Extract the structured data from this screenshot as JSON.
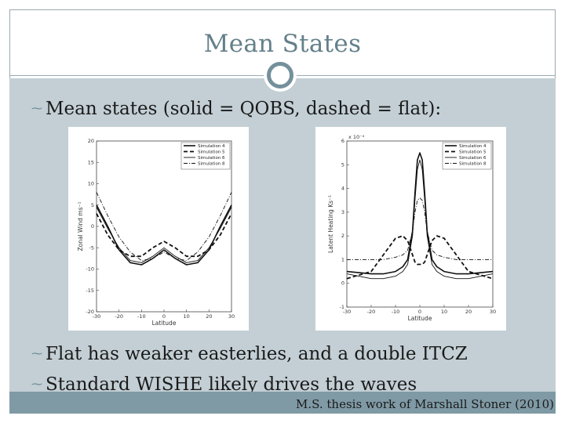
{
  "slide": {
    "title": "Mean States",
    "bullets": [
      "Mean states (solid = QOBS, dashed = flat):",
      "Flat has weaker easterlies, and a double ITCZ",
      "Standard WISHE likely drives the waves"
    ],
    "footer": "M.S. thesis work of Marshall Stoner (2010)",
    "accent_color": "#74909b",
    "content_bg": "#c3cfd5",
    "bullet_icon": "wave-bullet-icon"
  },
  "chart_data": [
    {
      "type": "line",
      "xlabel": "Latitude",
      "ylabel": "Zonal Wind ms⁻¹",
      "xlim": [
        -30,
        30
      ],
      "ylim": [
        -20,
        20
      ],
      "xticks": [
        "-30",
        "-20",
        "-10",
        "0",
        "10",
        "20",
        "30"
      ],
      "yticks": [
        "20",
        "15",
        "10",
        "5",
        "0",
        "-5",
        "-10",
        "-15",
        "-20"
      ],
      "legend": [
        "Simulation 4",
        "Simulation 5",
        "Simulation 6",
        "Simulation 8"
      ],
      "legend_position": "top-right",
      "x": [
        -30,
        -25,
        -20,
        -15,
        -10,
        -5,
        0,
        5,
        10,
        15,
        20,
        25,
        30
      ],
      "series": [
        {
          "name": "Simulation 4",
          "style": "solid",
          "values": [
            5,
            0,
            -5.5,
            -8.5,
            -9,
            -7.5,
            -5.5,
            -7.5,
            -9,
            -8.5,
            -5.5,
            0,
            5
          ]
        },
        {
          "name": "Simulation 5",
          "style": "dashed",
          "values": [
            3,
            -2,
            -5.5,
            -7,
            -7,
            -5,
            -3.5,
            -5,
            -7,
            -7,
            -5.5,
            -2,
            3
          ]
        },
        {
          "name": "Simulation 6",
          "style": "solid-thin",
          "values": [
            4.5,
            -0.5,
            -5,
            -8,
            -8.5,
            -7,
            -5,
            -7,
            -8.5,
            -8,
            -5,
            -0.5,
            4.5
          ]
        },
        {
          "name": "Simulation 8",
          "style": "dashdot",
          "values": [
            8,
            2.5,
            -2.5,
            -6,
            -8,
            -7.5,
            -6,
            -7.5,
            -8,
            -6,
            -2.5,
            2.5,
            8
          ]
        }
      ]
    },
    {
      "type": "line",
      "xlabel": "Latitude",
      "ylabel": "Latent Heating Ks⁻¹",
      "scale_label": "x 10⁻⁴",
      "xlim": [
        -30,
        30
      ],
      "ylim": [
        -1,
        6
      ],
      "xticks": [
        "-30",
        "-20",
        "-10",
        "0",
        "10",
        "20",
        "30"
      ],
      "yticks": [
        "6",
        "5",
        "4",
        "3",
        "2",
        "1",
        "0",
        "-1"
      ],
      "legend": [
        "Simulation 4",
        "Simulation 5",
        "Simulation 6",
        "Simulation 8"
      ],
      "legend_position": "top-right",
      "x": [
        -30,
        -20,
        -15,
        -10,
        -7,
        -5,
        -3,
        -2,
        -1,
        0,
        1,
        2,
        3,
        5,
        7,
        10,
        15,
        20,
        30
      ],
      "series": [
        {
          "name": "Simulation 4",
          "style": "solid",
          "values": [
            0.5,
            0.4,
            0.4,
            0.5,
            0.7,
            1.0,
            2.2,
            3.8,
            5.2,
            5.5,
            5.2,
            3.8,
            2.2,
            1.0,
            0.7,
            0.5,
            0.4,
            0.4,
            0.5
          ]
        },
        {
          "name": "Simulation 5",
          "style": "dashed",
          "values": [
            0.2,
            0.5,
            1.2,
            1.9,
            2.0,
            1.8,
            1.2,
            0.9,
            0.8,
            0.8,
            0.8,
            0.9,
            1.2,
            1.8,
            2.0,
            1.9,
            1.2,
            0.5,
            0.2
          ]
        },
        {
          "name": "Simulation 6",
          "style": "solid-thin",
          "values": [
            0.4,
            0.2,
            0.2,
            0.3,
            0.5,
            0.8,
            2.0,
            3.5,
            4.8,
            5.2,
            4.8,
            3.5,
            2.0,
            0.8,
            0.5,
            0.3,
            0.2,
            0.2,
            0.4
          ]
        },
        {
          "name": "Simulation 8",
          "style": "dashdot",
          "values": [
            1.0,
            1.0,
            1.0,
            1.1,
            1.2,
            1.4,
            2.2,
            3.0,
            3.5,
            3.6,
            3.5,
            3.0,
            2.2,
            1.4,
            1.2,
            1.1,
            1.0,
            1.0,
            1.0
          ]
        }
      ]
    }
  ]
}
